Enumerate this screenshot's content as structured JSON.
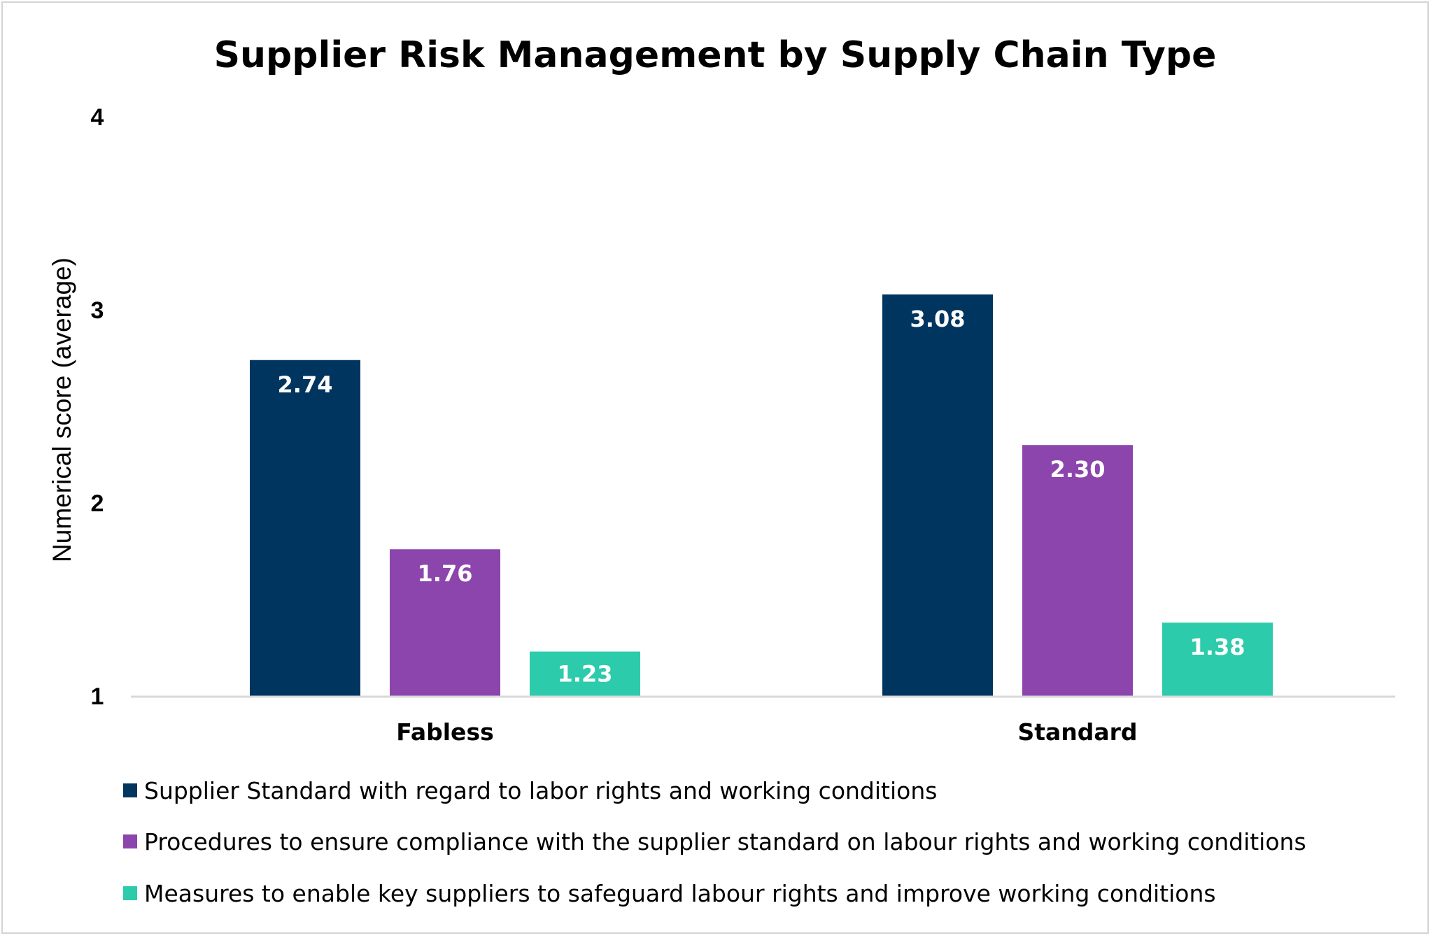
{
  "chart_data": {
    "type": "bar",
    "title": "Supplier Risk Management by Supply Chain Type",
    "xlabel": "",
    "ylabel": "Numerical score (average)",
    "ylim": [
      1,
      4
    ],
    "yticks": [
      "1",
      "2",
      "3",
      "4"
    ],
    "grid": false,
    "legend_position": "bottom-left",
    "categories": [
      "Fabless",
      "Standard"
    ],
    "series": [
      {
        "name": "Supplier Standard with regard to labor rights and working conditions",
        "color": "#003560",
        "values": [
          2.74,
          3.08
        ],
        "labels": [
          "2.74",
          "3.08"
        ]
      },
      {
        "name": "Procedures to ensure compliance with the supplier standard on labour rights and working conditions",
        "color": "#8c45ad",
        "values": [
          1.76,
          2.3
        ],
        "labels": [
          "1.76",
          "2.30"
        ]
      },
      {
        "name": "Measures to enable key suppliers to safeguard labour rights and improve working conditions",
        "color": "#2ccbab",
        "values": [
          1.23,
          1.38
        ],
        "labels": [
          "1.23",
          "1.38"
        ]
      }
    ]
  }
}
